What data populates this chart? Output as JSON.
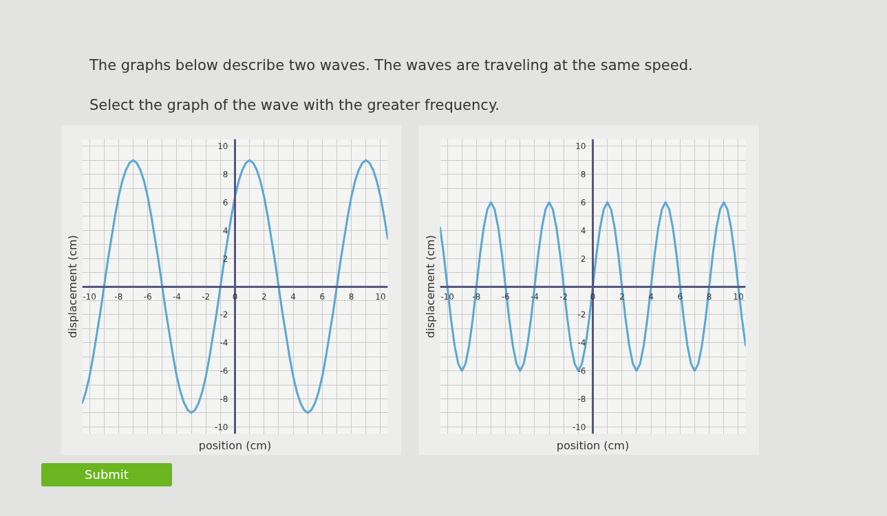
{
  "chart_data": [
    {
      "type": "line",
      "title": "The graphs below describe two waves. The waves are traveling at the same speed.",
      "subtitle": "Select the graph of the wave with the greater frequency.",
      "annotations": [
        "Submit"
      ],
      "xlabel": "position (cm)",
      "ylabel": "displacement (cm)",
      "grid": true,
      "xlim": [
        -10.5,
        10.5
      ],
      "ylim": [
        -10.5,
        10.5
      ],
      "xticks": [
        -10,
        {
          "value": -9,
          "label": null
        },
        -8,
        {
          "value": -7,
          "label": null
        },
        -6,
        {
          "value": -5,
          "label": null
        },
        -4,
        {
          "value": -3,
          "label": null
        },
        -2,
        {
          "value": -1,
          "label": null
        },
        0,
        {
          "value": 1,
          "label": null
        },
        2,
        {
          "value": 3,
          "label": null
        },
        4,
        {
          "value": 5,
          "label": null
        },
        6,
        {
          "value": 7,
          "label": null
        },
        8,
        {
          "value": 9,
          "label": null
        },
        10
      ],
      "yticks": [
        -10,
        {
          "value": -9,
          "label": null
        },
        -8,
        {
          "value": -7,
          "label": null
        },
        -6,
        {
          "value": -5,
          "label": null
        },
        -4,
        {
          "value": -3,
          "label": null
        },
        -2,
        {
          "value": -1,
          "label": null
        },
        {
          "value": 0,
          "label": null
        },
        {
          "value": 1,
          "label": null
        },
        2,
        {
          "value": 3,
          "label": null
        },
        4,
        {
          "value": 5,
          "label": null
        },
        6,
        {
          "value": 7,
          "label": null
        },
        8,
        {
          "value": 9,
          "label": null
        },
        10
      ],
      "x": [
        -10.5,
        -10.25,
        -10,
        -9.75,
        -9.5,
        -9.25,
        -9,
        -8.75,
        -8.5,
        -8.25,
        -8,
        -7.75,
        -7.5,
        -7.25,
        -7,
        -6.75,
        -6.5,
        -6.25,
        -6,
        -5.75,
        -5.5,
        -5.25,
        -5,
        -4.75,
        -4.5,
        -4.25,
        -4,
        -3.75,
        -3.5,
        -3.25,
        -3,
        -2.75,
        -2.5,
        -2.25,
        -2,
        -1.75,
        -1.5,
        -1.25,
        -1,
        -0.75,
        -0.5,
        -0.25,
        0,
        0.25,
        0.5,
        0.75,
        1,
        1.25,
        1.5,
        1.75,
        2,
        2.25,
        2.5,
        2.75,
        3,
        3.25,
        3.5,
        3.75,
        4,
        4.25,
        4.5,
        4.75,
        5,
        5.25,
        5.5,
        5.75,
        6,
        6.25,
        6.5,
        6.75,
        7,
        7.25,
        7.5,
        7.75,
        8,
        8.25,
        8.5,
        8.75,
        9,
        9.25,
        9.5,
        9.75,
        10,
        10.25,
        10.5
      ],
      "series": [
        {
          "color": "#5aa7d2",
          "values": [
            -8.3,
            -7.5,
            -6.4,
            -5.0,
            -3.4,
            -1.8,
            0,
            1.8,
            3.4,
            5.0,
            6.4,
            7.5,
            8.3,
            8.8,
            9,
            8.8,
            8.3,
            7.5,
            6.4,
            5.0,
            3.4,
            1.8,
            0,
            -1.8,
            -3.4,
            -5.0,
            -6.4,
            -7.5,
            -8.3,
            -8.8,
            -9,
            -8.8,
            -8.3,
            -7.5,
            -6.4,
            -5.0,
            -3.4,
            -1.8,
            0,
            1.8,
            3.4,
            5.0,
            6.4,
            7.5,
            8.3,
            8.8,
            9,
            8.8,
            8.3,
            7.5,
            6.4,
            5.0,
            3.4,
            1.8,
            0,
            -1.8,
            -3.4,
            -5.0,
            -6.4,
            -7.5,
            -8.3,
            -8.8,
            -9,
            -8.8,
            -8.3,
            -7.5,
            -6.4,
            -5.0,
            -3.4,
            -1.8,
            0,
            1.8,
            3.4,
            5.0,
            6.4,
            7.5,
            8.3,
            8.8,
            9,
            8.8,
            8.3,
            7.5,
            6.4,
            5.0,
            3.4
          ]
        }
      ]
    },
    {
      "type": "line",
      "xlabel": "position (cm)",
      "ylabel": "displacement (cm)",
      "grid": true,
      "xlim": [
        -10.5,
        10.5
      ],
      "ylim": [
        -10.5,
        10.5
      ],
      "xticks": [
        -10,
        {
          "value": -9,
          "label": null
        },
        -8,
        {
          "value": -7,
          "label": null
        },
        -6,
        {
          "value": -5,
          "label": null
        },
        -4,
        {
          "value": -3,
          "label": null
        },
        -2,
        {
          "value": -1,
          "label": null
        },
        0,
        {
          "value": 1,
          "label": null
        },
        2,
        {
          "value": 3,
          "label": null
        },
        4,
        {
          "value": 5,
          "label": null
        },
        6,
        {
          "value": 7,
          "label": null
        },
        8,
        {
          "value": 9,
          "label": null
        },
        10
      ],
      "yticks": [
        -10,
        {
          "value": -9,
          "label": null
        },
        -8,
        {
          "value": -7,
          "label": null
        },
        -6,
        {
          "value": -5,
          "label": null
        },
        -4,
        {
          "value": -3,
          "label": null
        },
        -2,
        {
          "value": -1,
          "label": null
        },
        {
          "value": 0,
          "label": null
        },
        {
          "value": 1,
          "label": null
        },
        2,
        {
          "value": 3,
          "label": null
        },
        4,
        {
          "value": 5,
          "label": null
        },
        6,
        {
          "value": 7,
          "label": null
        },
        8,
        {
          "value": 9,
          "label": null
        },
        10
      ],
      "x": [
        -10.5,
        -10.25,
        -10,
        -9.75,
        -9.5,
        -9.25,
        -9,
        -8.75,
        -8.5,
        -8.25,
        -8,
        -7.75,
        -7.5,
        -7.25,
        -7,
        -6.75,
        -6.5,
        -6.25,
        -6,
        -5.75,
        -5.5,
        -5.25,
        -5,
        -4.75,
        -4.5,
        -4.25,
        -4,
        -3.75,
        -3.5,
        -3.25,
        -3,
        -2.75,
        -2.5,
        -2.25,
        -2,
        -1.75,
        -1.5,
        -1.25,
        -1,
        -0.75,
        -0.5,
        -0.25,
        0,
        0.25,
        0.5,
        0.75,
        1,
        1.25,
        1.5,
        1.75,
        2,
        2.25,
        2.5,
        2.75,
        3,
        3.25,
        3.5,
        3.75,
        4,
        4.25,
        4.5,
        4.75,
        5,
        5.25,
        5.5,
        5.75,
        6,
        6.25,
        6.5,
        6.75,
        7,
        7.25,
        7.5,
        7.75,
        8,
        8.25,
        8.5,
        8.75,
        9,
        9.25,
        9.5,
        9.75,
        10,
        10.25,
        10.5
      ],
      "series": [
        {
          "color": "#5aa7d2",
          "values": [
            4.2,
            2.3,
            0,
            -2.3,
            -4.2,
            -5.5,
            -6,
            -5.5,
            -4.2,
            -2.3,
            0,
            2.3,
            4.2,
            5.5,
            6,
            5.5,
            4.2,
            2.3,
            0,
            -2.3,
            -4.2,
            -5.5,
            -6,
            -5.5,
            -4.2,
            -2.3,
            0,
            2.3,
            4.2,
            5.5,
            6,
            5.5,
            4.2,
            2.3,
            0,
            -2.3,
            -4.2,
            -5.5,
            -6,
            -5.5,
            -4.2,
            -2.3,
            0,
            2.3,
            4.2,
            5.5,
            6,
            5.5,
            4.2,
            2.3,
            0,
            -2.3,
            -4.2,
            -5.5,
            -6,
            -5.5,
            -4.2,
            -2.3,
            0,
            2.3,
            4.2,
            5.5,
            6,
            5.5,
            4.2,
            2.3,
            0,
            -2.3,
            -4.2,
            -5.5,
            -6,
            -5.5,
            -4.2,
            -2.3,
            0,
            2.3,
            4.2,
            5.5,
            6,
            5.5,
            4.2,
            2.3,
            0,
            -2.3,
            -4.2
          ]
        }
      ]
    }
  ]
}
